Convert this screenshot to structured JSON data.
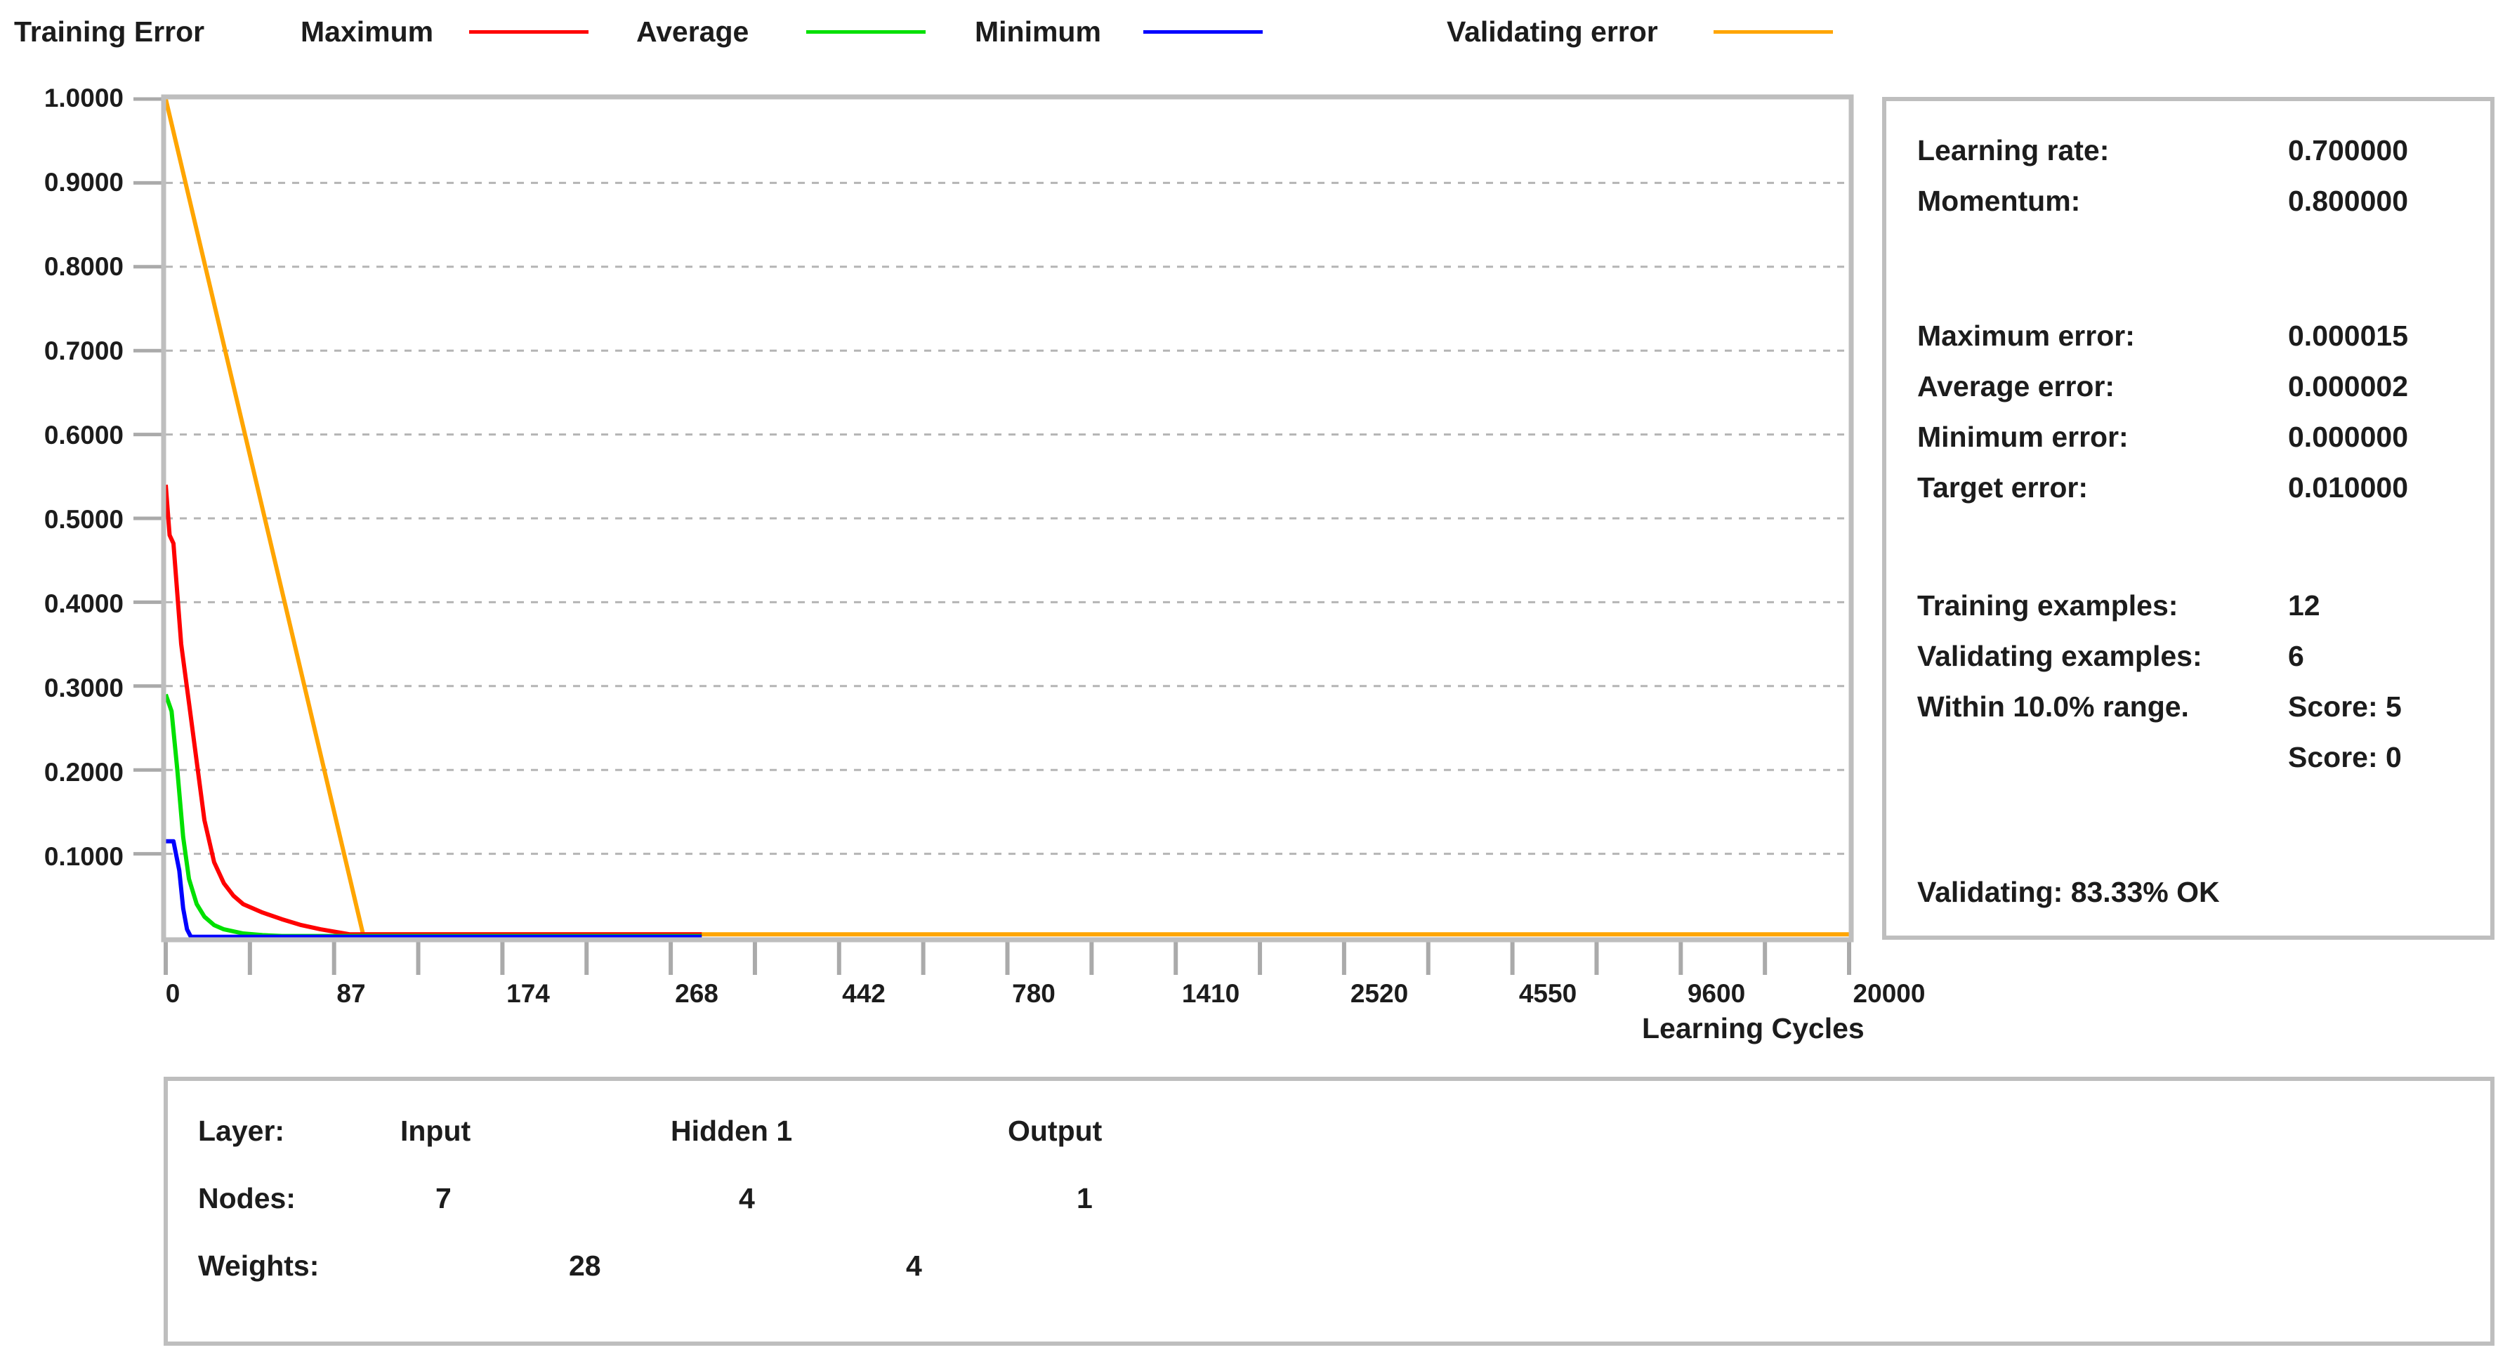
{
  "legend": {
    "title": "Training Error",
    "items": [
      {
        "label": "Maximum",
        "color": "#ff0000"
      },
      {
        "label": "Average",
        "color": "#00e000"
      },
      {
        "label": "Minimum",
        "color": "#0000ff"
      },
      {
        "label": "Validating error",
        "color": "#ffa500"
      }
    ]
  },
  "axis": {
    "x_title": "Learning Cycles",
    "y_ticks": [
      "1.0000",
      "0.9000",
      "0.8000",
      "0.7000",
      "0.6000",
      "0.5000",
      "0.4000",
      "0.3000",
      "0.2000",
      "0.1000"
    ],
    "x_ticks": [
      "0",
      "87",
      "174",
      "268",
      "442",
      "780",
      "1410",
      "2520",
      "4550",
      "9600",
      "20000"
    ]
  },
  "stats": {
    "learning_rate": {
      "label": "Learning rate:",
      "value": "0.700000"
    },
    "momentum": {
      "label": "Momentum:",
      "value": "0.800000"
    },
    "maximum_error": {
      "label": "Maximum error:",
      "value": "0.000015"
    },
    "average_error": {
      "label": "Average error:",
      "value": "0.000002"
    },
    "minimum_error": {
      "label": "Minimum error:",
      "value": "0.000000"
    },
    "target_error": {
      "label": "Target error:",
      "value": "0.010000"
    },
    "training_examples": {
      "label": "Training examples:",
      "value": "12"
    },
    "validating_examples": {
      "label": "Validating examples:",
      "value": "6"
    },
    "within_range": {
      "label": "Within 10.0% range.",
      "value": "Score: 5"
    },
    "score_validating": {
      "value": "Score: 0"
    },
    "validating_result": "Validating: 83.33% OK"
  },
  "network": {
    "layer_label": "Layer:",
    "layers": [
      "Input",
      "Hidden 1",
      "Output"
    ],
    "nodes_label": "Nodes:",
    "nodes": [
      "7",
      "4",
      "1"
    ],
    "weights_label": "Weights:",
    "weights": [
      "28",
      "4"
    ]
  },
  "chart_data": {
    "type": "line",
    "xlabel": "Learning Cycles",
    "ylim": [
      0,
      1.0
    ],
    "grid": true,
    "legend_position": "top",
    "x_scale": "non-linear (tick labels 0, 87, 174, 268, 442, 780, 1410, 2520, 4550, 9600, 20000)",
    "series": [
      {
        "name": "Maximum",
        "color": "#ff0000",
        "x": [
          0,
          2,
          4,
          8,
          12,
          16,
          20,
          25,
          30,
          35,
          40,
          50,
          60,
          70,
          80,
          90,
          95,
          300
        ],
        "y": [
          0.54,
          0.48,
          0.47,
          0.35,
          0.28,
          0.21,
          0.14,
          0.09,
          0.065,
          0.05,
          0.04,
          0.03,
          0.022,
          0.015,
          0.01,
          0.006,
          0.004,
          0.004
        ]
      },
      {
        "name": "Average",
        "color": "#00e000",
        "x": [
          0,
          3,
          6,
          9,
          12,
          16,
          20,
          25,
          30,
          40,
          50,
          60,
          300
        ],
        "y": [
          0.29,
          0.27,
          0.2,
          0.12,
          0.07,
          0.04,
          0.025,
          0.015,
          0.01,
          0.005,
          0.003,
          0.002,
          0.002
        ]
      },
      {
        "name": "Minimum",
        "color": "#0000ff",
        "x": [
          0,
          4,
          7,
          9,
          11,
          13,
          300
        ],
        "y": [
          0.115,
          0.115,
          0.08,
          0.035,
          0.01,
          0.001,
          0.001
        ]
      },
      {
        "name": "Validating error",
        "color": "#ffa500",
        "x": [
          0,
          102,
          20000
        ],
        "y": [
          1.0,
          0.004,
          0.004
        ]
      }
    ]
  }
}
